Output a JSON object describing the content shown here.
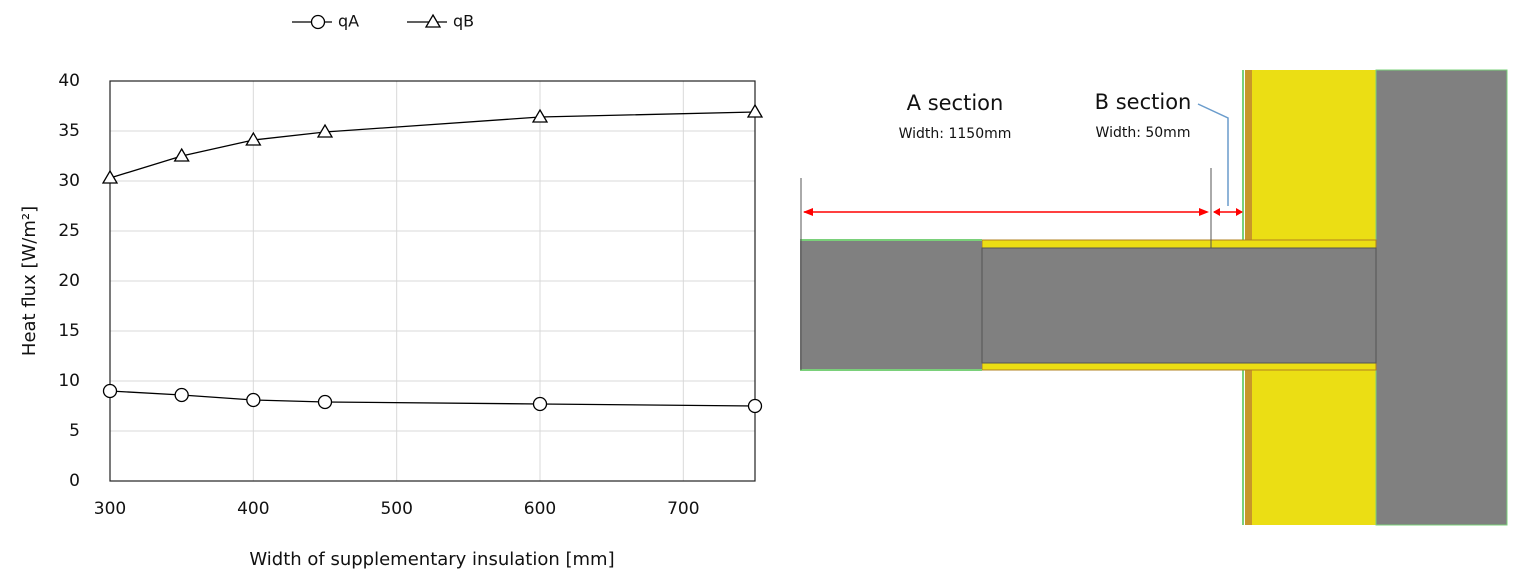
{
  "chart_data": {
    "type": "line",
    "x_label": "Width of supplementary insulation [mm]",
    "y_label": "Heat flux [W/m²]",
    "x": [
      300,
      350,
      400,
      450,
      600,
      750
    ],
    "series": [
      {
        "name": "qA",
        "marker": "circle",
        "color": "#000000",
        "values": [
          9.0,
          8.6,
          8.1,
          7.9,
          7.7,
          7.5
        ]
      },
      {
        "name": "qB",
        "marker": "triangle",
        "color": "#000000",
        "values": [
          30.3,
          32.5,
          34.1,
          34.9,
          36.4,
          36.9
        ]
      }
    ],
    "xlim": [
      300,
      750
    ],
    "xticks": [
      300,
      400,
      500,
      600,
      700
    ],
    "ylim": [
      0,
      40
    ],
    "yticks": [
      0,
      5,
      10,
      15,
      20,
      25,
      30,
      35,
      40
    ],
    "grid": true,
    "legend": "top"
  },
  "diagram": {
    "labels": [
      {
        "title": "A section",
        "width": "Width: 1150mm"
      },
      {
        "title": "B section",
        "width": "Width: 50mm"
      }
    ]
  }
}
